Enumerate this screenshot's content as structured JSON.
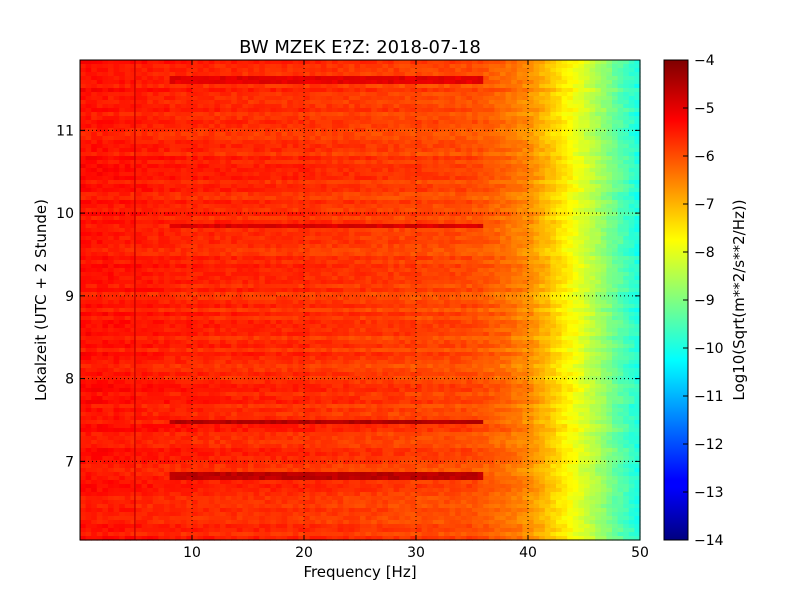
{
  "chart_data": {
    "type": "heatmap",
    "title": "BW MZEK E?Z: 2018-07-18",
    "xlabel": "Frequency [Hz]",
    "ylabel": "Lokalzeit (UTC + 2 Stunde)",
    "xlim": [
      0,
      50
    ],
    "ylim": [
      11.85,
      6.05
    ],
    "x_ticks": [
      10,
      20,
      30,
      40,
      50
    ],
    "y_ticks": [
      7,
      8,
      9,
      10,
      11
    ],
    "grid": true,
    "colorbar": {
      "label": "Log10(Sqrt(m**2/s**2/Hz))",
      "range": [
        -14,
        -4
      ],
      "ticks": [
        -4,
        -5,
        -6,
        -7,
        -8,
        -9,
        -10,
        -11,
        -12,
        -13,
        -14
      ],
      "colormap": "jet"
    },
    "frequency_profile": {
      "freq_hz": [
        0,
        5,
        10,
        20,
        30,
        35,
        38,
        40,
        42,
        44,
        46,
        48,
        50
      ],
      "level": [
        -5.4,
        -5.5,
        -5.6,
        -5.7,
        -5.9,
        -6.0,
        -6.3,
        -6.6,
        -7.2,
        -7.8,
        -8.5,
        -9.3,
        -10.0
      ]
    },
    "features": [
      {
        "kind": "vertical_line",
        "freq_hz": 4.9,
        "level": -4.7
      },
      {
        "kind": "horizontal_band",
        "time": 6.82,
        "level": -4.6
      },
      {
        "kind": "horizontal_band",
        "time": 7.47,
        "level": -4.5
      },
      {
        "kind": "horizontal_band",
        "time": 9.85,
        "level": -4.9
      },
      {
        "kind": "horizontal_band",
        "time": 11.6,
        "level": -5.0
      }
    ]
  }
}
